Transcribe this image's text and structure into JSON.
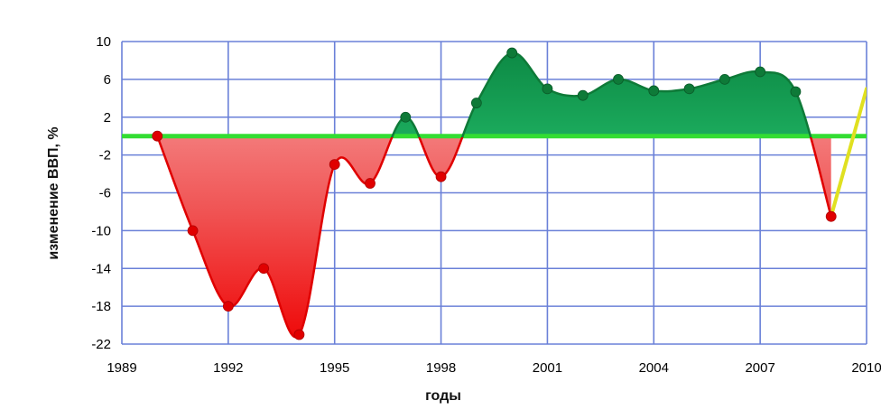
{
  "chart_data": {
    "type": "area",
    "title": "",
    "xlabel": "годы",
    "ylabel": "изменение ВВП, %",
    "xlim": [
      1989,
      2010
    ],
    "ylim": [
      -22,
      10
    ],
    "x_ticks": [
      1989,
      1992,
      1995,
      1998,
      2001,
      2004,
      2007,
      2010
    ],
    "x_tick_labels": [
      "1989",
      "1992",
      "1995",
      "1998",
      "2001",
      "2004",
      "2007",
      "2010"
    ],
    "y_ticks": [
      10,
      6,
      2,
      -2,
      -6,
      -10,
      -14,
      -18,
      -22
    ],
    "y_tick_labels": [
      "10",
      "6",
      "2",
      "-2",
      "-6",
      "-10",
      "-14",
      "-18",
      "-22"
    ],
    "grid": true,
    "legend": "none",
    "baseline": 0,
    "series": [
      {
        "x": [
          1990,
          1991,
          1992,
          1993,
          1994,
          1995,
          1996,
          1997,
          1998,
          1999,
          2000,
          2001,
          2002,
          2003,
          2004,
          2005,
          2006,
          2007,
          2008,
          2009
        ],
        "values": [
          0.0,
          -10.0,
          -18.0,
          -14.0,
          -21.0,
          -3.0,
          -5.0,
          2.0,
          -4.3,
          3.5,
          8.8,
          5.0,
          4.3,
          6.0,
          4.8,
          5.0,
          6.0,
          6.8,
          4.7,
          -8.5
        ]
      },
      {
        "x": [
          2009,
          2010
        ],
        "values": [
          -8.5,
          5.0
        ],
        "style": "projection"
      }
    ],
    "colors": {
      "decline_fill": "#f26262",
      "growth_fill": "#1db564",
      "zero_line": "#33dd33",
      "projection_line": "#e0e020",
      "grid": "#6a80d8",
      "positive_points": "#0e7a38",
      "negative_points": "#e00000"
    }
  }
}
